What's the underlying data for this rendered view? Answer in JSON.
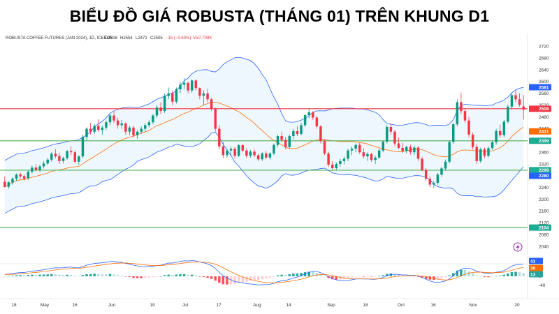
{
  "title": "BIỂU ĐỒ GIÁ ROBUSTA (THÁNG 01) TRÊN KHUNG D1",
  "chart_data": {
    "type": "candlestick",
    "symbol_line": "ROBUSTA COFFEE FUTURES (JAN 2024), 1D, ICEEUR",
    "ohlc_readout": {
      "open": "O2516",
      "high": "H2554",
      "low": "L2471",
      "close": "C2505",
      "change": "−16 (−0.63%)",
      "volume": "Vol7.709K"
    },
    "price_axis": {
      "ylim": [
        2000,
        2740
      ],
      "ticks": [
        2720,
        2680,
        2640,
        2600,
        2560,
        2520,
        2480,
        2440,
        2400,
        2360,
        2320,
        2280,
        2240,
        2200,
        2160,
        2120,
        2080,
        2040
      ]
    },
    "price_badges": [
      {
        "label": "2581",
        "value": 2581,
        "color": "#2962ff"
      },
      {
        "label": "2508",
        "value": 2508,
        "color": "#f23645"
      },
      {
        "label": "2431",
        "value": 2431,
        "color": "#ff6d00"
      },
      {
        "label": "2399",
        "value": 2399,
        "color": "#22ab94"
      },
      {
        "label": "2299",
        "value": 2299,
        "color": "#22ab94"
      },
      {
        "label": "2280",
        "value": 2280,
        "color": "#2962ff"
      },
      {
        "label": "2104",
        "value": 2104,
        "color": "#22ab94"
      }
    ],
    "horizontal_levels": [
      {
        "value": 2508,
        "color": "#f23645"
      },
      {
        "value": 2399,
        "color": "#4caf50"
      },
      {
        "value": 2299,
        "color": "#4caf50"
      },
      {
        "value": 2104,
        "color": "#4caf50"
      }
    ],
    "x_labels": [
      "18",
      "May",
      "16",
      "Jun",
      "19",
      "Jul",
      "17",
      "Aug",
      "14",
      "Sep",
      "18",
      "Oct",
      "16",
      "Nov",
      "20"
    ],
    "candles": [
      [
        2260,
        2278,
        2240,
        2242
      ],
      [
        2243,
        2262,
        2236,
        2258
      ],
      [
        2257,
        2275,
        2250,
        2270
      ],
      [
        2270,
        2288,
        2262,
        2284
      ],
      [
        2285,
        2290,
        2270,
        2278
      ],
      [
        2279,
        2285,
        2264,
        2270
      ],
      [
        2272,
        2300,
        2266,
        2294
      ],
      [
        2294,
        2315,
        2288,
        2308
      ],
      [
        2308,
        2320,
        2295,
        2300
      ],
      [
        2300,
        2318,
        2294,
        2312
      ],
      [
        2312,
        2330,
        2305,
        2322
      ],
      [
        2322,
        2340,
        2316,
        2335
      ],
      [
        2335,
        2360,
        2328,
        2355
      ],
      [
        2355,
        2370,
        2340,
        2346
      ],
      [
        2347,
        2358,
        2320,
        2330
      ],
      [
        2330,
        2345,
        2322,
        2340
      ],
      [
        2340,
        2368,
        2334,
        2364
      ],
      [
        2364,
        2380,
        2350,
        2360
      ],
      [
        2360,
        2366,
        2322,
        2328
      ],
      [
        2328,
        2350,
        2318,
        2346
      ],
      [
        2346,
        2420,
        2340,
        2412
      ],
      [
        2412,
        2445,
        2400,
        2440
      ],
      [
        2440,
        2460,
        2420,
        2430
      ],
      [
        2430,
        2456,
        2422,
        2450
      ],
      [
        2450,
        2472,
        2430,
        2436
      ],
      [
        2436,
        2450,
        2420,
        2444
      ],
      [
        2444,
        2468,
        2436,
        2462
      ],
      [
        2462,
        2490,
        2452,
        2485
      ],
      [
        2485,
        2500,
        2460,
        2468
      ],
      [
        2468,
        2478,
        2440,
        2452
      ],
      [
        2452,
        2470,
        2440,
        2458
      ],
      [
        2458,
        2462,
        2420,
        2430
      ],
      [
        2430,
        2450,
        2418,
        2444
      ],
      [
        2444,
        2450,
        2410,
        2418
      ],
      [
        2418,
        2435,
        2405,
        2430
      ],
      [
        2430,
        2448,
        2422,
        2440
      ],
      [
        2440,
        2460,
        2430,
        2452
      ],
      [
        2452,
        2470,
        2444,
        2462
      ],
      [
        2462,
        2490,
        2455,
        2485
      ],
      [
        2485,
        2520,
        2476,
        2512
      ],
      [
        2512,
        2530,
        2490,
        2500
      ],
      [
        2500,
        2560,
        2494,
        2552
      ],
      [
        2552,
        2580,
        2540,
        2560
      ],
      [
        2560,
        2570,
        2520,
        2532
      ],
      [
        2532,
        2580,
        2526,
        2574
      ],
      [
        2574,
        2600,
        2560,
        2590
      ],
      [
        2590,
        2612,
        2575,
        2596
      ],
      [
        2596,
        2600,
        2560,
        2570
      ],
      [
        2570,
        2608,
        2562,
        2604
      ],
      [
        2604,
        2608,
        2570,
        2578
      ],
      [
        2578,
        2580,
        2540,
        2552
      ],
      [
        2552,
        2570,
        2520,
        2560
      ],
      [
        2560,
        2575,
        2530,
        2540
      ],
      [
        2540,
        2545,
        2500,
        2508
      ],
      [
        2508,
        2512,
        2430,
        2440
      ],
      [
        2440,
        2452,
        2370,
        2380
      ],
      [
        2380,
        2395,
        2340,
        2350
      ],
      [
        2350,
        2372,
        2342,
        2366
      ],
      [
        2366,
        2380,
        2350,
        2372
      ],
      [
        2372,
        2378,
        2340,
        2348
      ],
      [
        2348,
        2388,
        2344,
        2384
      ],
      [
        2384,
        2388,
        2360,
        2366
      ],
      [
        2366,
        2374,
        2340,
        2348
      ],
      [
        2348,
        2368,
        2342,
        2362
      ],
      [
        2362,
        2370,
        2344,
        2350
      ],
      [
        2350,
        2356,
        2330,
        2336
      ],
      [
        2336,
        2360,
        2330,
        2356
      ],
      [
        2356,
        2364,
        2336,
        2342
      ],
      [
        2342,
        2360,
        2335,
        2356
      ],
      [
        2356,
        2390,
        2350,
        2385
      ],
      [
        2385,
        2420,
        2378,
        2415
      ],
      [
        2415,
        2430,
        2395,
        2402
      ],
      [
        2402,
        2412,
        2370,
        2378
      ],
      [
        2378,
        2420,
        2374,
        2415
      ],
      [
        2415,
        2440,
        2405,
        2432
      ],
      [
        2432,
        2448,
        2415,
        2422
      ],
      [
        2422,
        2460,
        2418,
        2452
      ],
      [
        2452,
        2490,
        2446,
        2486
      ],
      [
        2486,
        2510,
        2476,
        2496
      ],
      [
        2496,
        2500,
        2470,
        2478
      ],
      [
        2478,
        2484,
        2440,
        2448
      ],
      [
        2448,
        2452,
        2390,
        2398
      ],
      [
        2398,
        2404,
        2350,
        2356
      ],
      [
        2356,
        2362,
        2310,
        2318
      ],
      [
        2318,
        2330,
        2300,
        2306
      ],
      [
        2306,
        2326,
        2298,
        2320
      ],
      [
        2320,
        2338,
        2310,
        2330
      ],
      [
        2330,
        2345,
        2318,
        2338
      ],
      [
        2338,
        2372,
        2330,
        2366
      ],
      [
        2366,
        2380,
        2350,
        2372
      ],
      [
        2372,
        2390,
        2360,
        2385
      ],
      [
        2385,
        2392,
        2354,
        2360
      ],
      [
        2360,
        2374,
        2338,
        2346
      ],
      [
        2346,
        2360,
        2330,
        2354
      ],
      [
        2354,
        2358,
        2328,
        2334
      ],
      [
        2334,
        2348,
        2320,
        2342
      ],
      [
        2342,
        2372,
        2338,
        2366
      ],
      [
        2366,
        2400,
        2360,
        2396
      ],
      [
        2396,
        2452,
        2390,
        2446
      ],
      [
        2446,
        2458,
        2420,
        2430
      ],
      [
        2430,
        2436,
        2380,
        2390
      ],
      [
        2390,
        2410,
        2370,
        2375
      ],
      [
        2375,
        2392,
        2358,
        2364
      ],
      [
        2364,
        2382,
        2356,
        2378
      ],
      [
        2378,
        2386,
        2352,
        2360
      ],
      [
        2360,
        2382,
        2350,
        2376
      ],
      [
        2376,
        2382,
        2330,
        2338
      ],
      [
        2338,
        2344,
        2295,
        2300
      ],
      [
        2300,
        2306,
        2262,
        2270
      ],
      [
        2270,
        2278,
        2242,
        2250
      ],
      [
        2250,
        2262,
        2238,
        2256
      ],
      [
        2256,
        2290,
        2250,
        2284
      ],
      [
        2284,
        2310,
        2276,
        2305
      ],
      [
        2305,
        2335,
        2298,
        2328
      ],
      [
        2328,
        2400,
        2322,
        2395
      ],
      [
        2395,
        2460,
        2388,
        2455
      ],
      [
        2455,
        2540,
        2448,
        2530
      ],
      [
        2530,
        2562,
        2490,
        2500
      ],
      [
        2500,
        2506,
        2460,
        2468
      ],
      [
        2468,
        2480,
        2410,
        2420
      ],
      [
        2420,
        2428,
        2370,
        2378
      ],
      [
        2378,
        2388,
        2320,
        2330
      ],
      [
        2330,
        2376,
        2324,
        2370
      ],
      [
        2370,
        2376,
        2340,
        2348
      ],
      [
        2348,
        2380,
        2342,
        2374
      ],
      [
        2374,
        2400,
        2368,
        2394
      ],
      [
        2394,
        2440,
        2386,
        2432
      ],
      [
        2432,
        2454,
        2408,
        2418
      ],
      [
        2418,
        2470,
        2410,
        2464
      ],
      [
        2464,
        2522,
        2458,
        2515
      ],
      [
        2515,
        2560,
        2505,
        2554
      ],
      [
        2554,
        2570,
        2530,
        2540
      ],
      [
        2540,
        2560,
        2515,
        2521
      ],
      [
        2516,
        2554,
        2471,
        2505
      ]
    ],
    "indicators": [
      "Bollinger Bands",
      "Moving Average"
    ],
    "macd_panel": {
      "type": "histogram+lines",
      "ticks": [
        0,
        -40
      ],
      "badges": [
        {
          "label": "43",
          "color": "#2962ff"
        },
        {
          "label": "30",
          "color": "#ff6d00"
        },
        {
          "label": "13",
          "color": "#26a69a"
        }
      ]
    }
  }
}
